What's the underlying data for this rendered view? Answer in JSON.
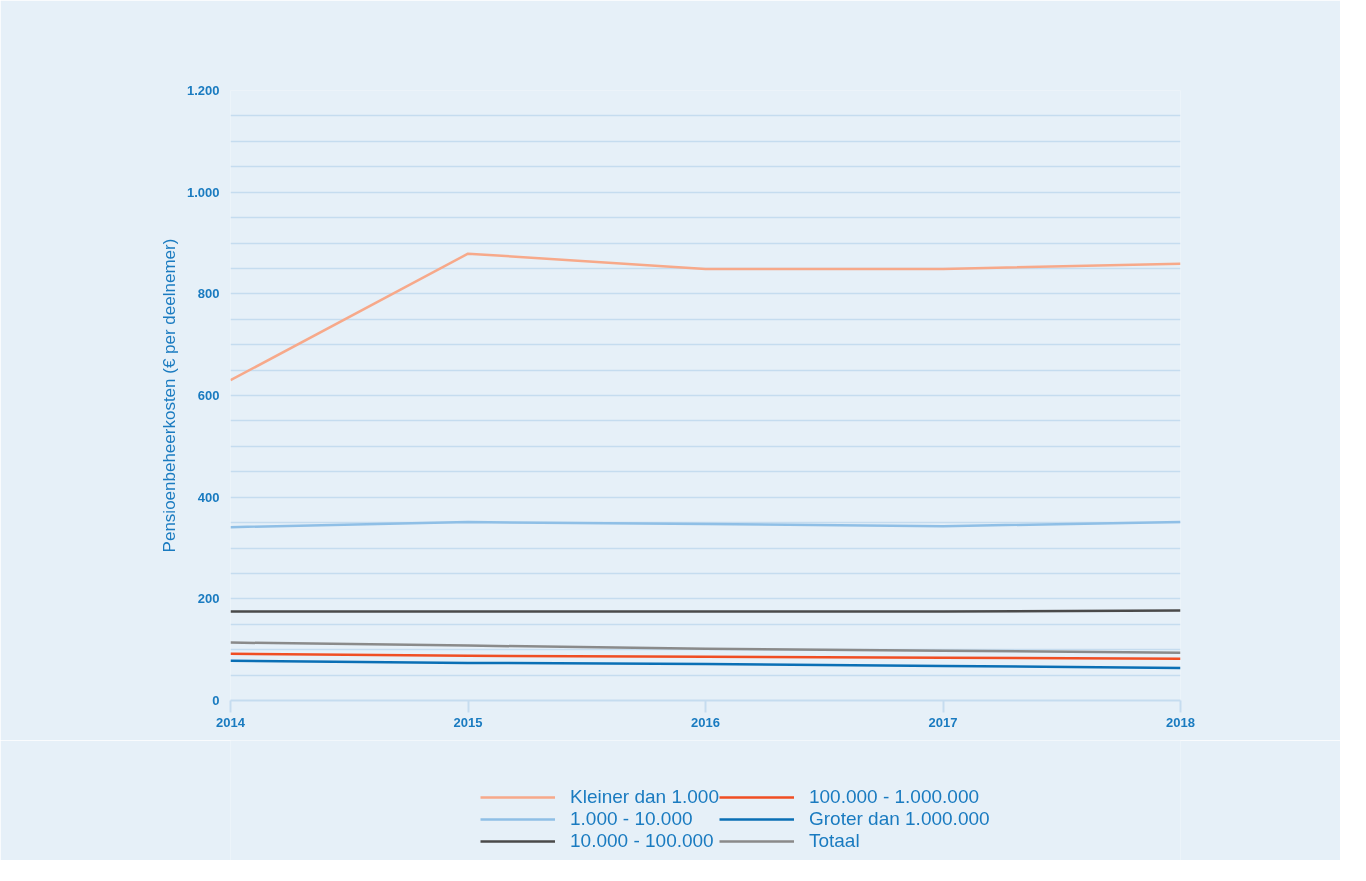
{
  "chart_data": {
    "type": "line",
    "ylabel": "Pensioenbeheerkosten (€ per deelnemer)",
    "x": [
      2014,
      2015,
      2016,
      2017,
      2018
    ],
    "xlim": [
      2014,
      2018
    ],
    "xticks": [
      2014,
      2015,
      2016,
      2017,
      2018
    ],
    "ylim": [
      0,
      1200
    ],
    "yticks": [
      0,
      {
        "value": 50,
        "label": null
      },
      200,
      {
        "value": 100,
        "label": null
      },
      {
        "value": 150,
        "label": null
      },
      {
        "value": 250,
        "label": null
      },
      {
        "value": 300,
        "label": null
      },
      {
        "value": 350,
        "label": null
      },
      400,
      {
        "value": 450,
        "label": null
      },
      {
        "value": 500,
        "label": null
      },
      {
        "value": 550,
        "label": null
      },
      600,
      {
        "value": 650,
        "label": null
      },
      {
        "value": 700,
        "label": null
      },
      {
        "value": 750,
        "label": null
      },
      800,
      {
        "value": 850,
        "label": null
      },
      {
        "value": 900,
        "label": null
      },
      {
        "value": 950,
        "label": null
      },
      {
        "value": 1000,
        "label": "1.000"
      },
      {
        "value": 1050,
        "label": null
      },
      {
        "value": 1100,
        "label": null
      },
      {
        "value": 1150,
        "label": null
      },
      {
        "value": 1200,
        "label": "1.200"
      }
    ],
    "grid": "y",
    "legend": "bottom",
    "marker": "none",
    "line_style": "solid",
    "series": [
      {
        "name": "Kleiner dan 1.000",
        "color": "#f7a98a",
        "values": [
          630,
          879,
          849,
          849,
          859
        ]
      },
      {
        "name": "100.000 - 1.000.000",
        "color": "#f04e23",
        "values": [
          92,
          88,
          86,
          84,
          82
        ]
      },
      {
        "name": "1.000 - 10.000",
        "color": "#8fbfe6",
        "values": [
          341,
          351,
          347,
          343,
          351
        ]
      },
      {
        "name": "Groter dan 1.000.000",
        "color": "#0a6fb5",
        "values": [
          78,
          74,
          72,
          68,
          64
        ]
      },
      {
        "name": "10.000 - 100.000",
        "color": "#4a4a4a",
        "values": [
          175,
          175,
          175,
          175,
          177
        ]
      },
      {
        "name": "Totaal",
        "color": "#8a8a8a",
        "values": [
          114,
          108,
          102,
          98,
          94
        ]
      }
    ]
  }
}
